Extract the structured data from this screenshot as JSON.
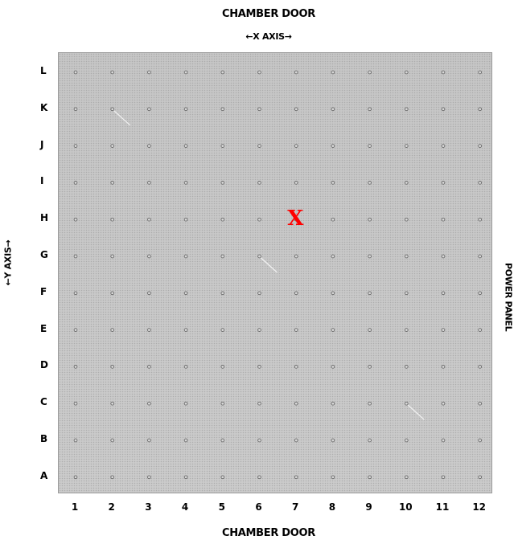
{
  "labels": {
    "top": "CHAMBER DOOR",
    "bottom": "CHAMBER DOOR",
    "x_axis": "←X AXIS→",
    "y_axis": "←Y AXIS→",
    "right_side": "POWER PANEL"
  },
  "grid": {
    "rows": [
      "A",
      "B",
      "C",
      "D",
      "E",
      "F",
      "G",
      "H",
      "I",
      "J",
      "K",
      "L"
    ],
    "columns": [
      "1",
      "2",
      "3",
      "4",
      "5",
      "6",
      "7",
      "8",
      "9",
      "10",
      "11",
      "12"
    ]
  },
  "marker": {
    "symbol": "X",
    "row": "H",
    "column": "7",
    "color": "#ff0000"
  },
  "streaks": [
    {
      "row": "K",
      "column": "2"
    },
    {
      "row": "G",
      "column": "6"
    },
    {
      "row": "C",
      "column": "10"
    }
  ]
}
